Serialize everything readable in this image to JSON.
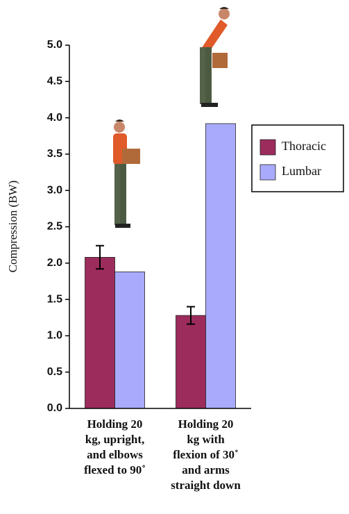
{
  "chart_data": {
    "type": "bar",
    "y_label": "Compression (BW)",
    "categories": [
      "Holding 20\nkg, upright,\nand elbows\nflexed to 90˚",
      "Holding 20\nkg with\nflexion of 30˚\nand arms\nstraight down"
    ],
    "series": [
      {
        "name": "Thoracic",
        "color": "#9c2c5c",
        "values": [
          2.08,
          1.28
        ],
        "errors": [
          0.16,
          0.12
        ]
      },
      {
        "name": "Lumbar",
        "color": "#aaaafc",
        "values": [
          1.88,
          3.92
        ]
      }
    ],
    "ylim": [
      0,
      5
    ],
    "yticks": [
      {
        "value": 0,
        "label": "0.0"
      },
      0.5,
      {
        "value": 1,
        "label": "1.0"
      },
      1.5,
      {
        "value": 2,
        "label": "2.0"
      },
      2.5,
      {
        "value": 3,
        "label": "3.0"
      },
      3.5,
      {
        "value": 4,
        "label": "4.0"
      },
      4.5,
      {
        "value": 5,
        "label": "5.0"
      }
    ],
    "legend": "right"
  }
}
